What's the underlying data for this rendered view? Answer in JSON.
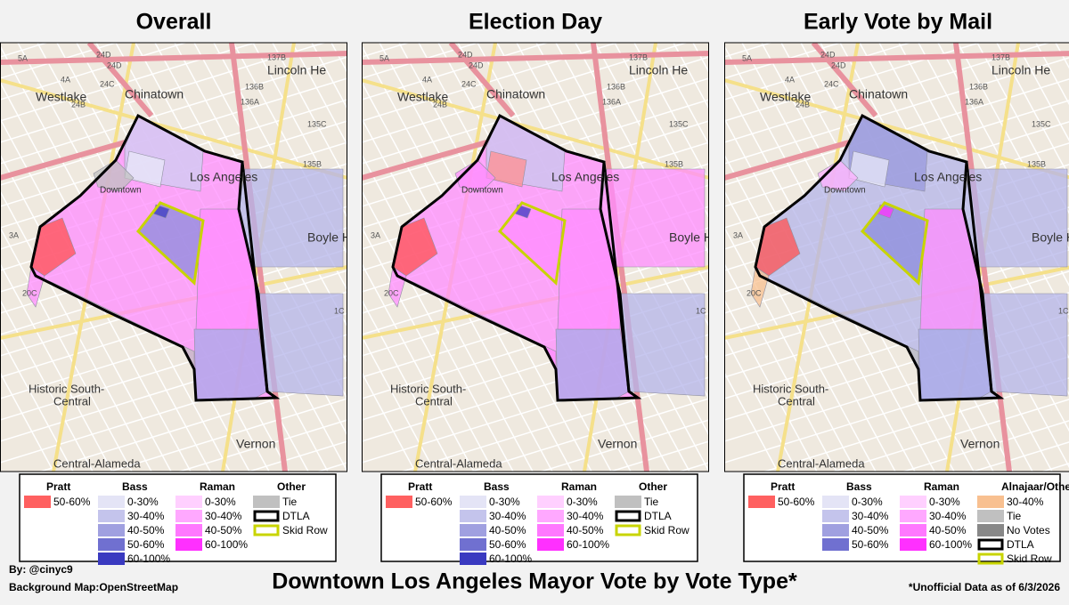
{
  "panels": [
    {
      "title": "Overall",
      "legend": [
        {
          "heading": "Pratt",
          "items": [
            {
              "label": "50-60%",
              "color": "#ff6060"
            }
          ]
        },
        {
          "heading": "Bass",
          "items": [
            {
              "label": "0-30%",
              "color": "#e4e4f6"
            },
            {
              "label": "30-40%",
              "color": "#c4c4ec"
            },
            {
              "label": "40-50%",
              "color": "#a0a0e0"
            },
            {
              "label": "50-60%",
              "color": "#7070d0"
            },
            {
              "label": "60-100%",
              "color": "#3a3ac0"
            }
          ]
        },
        {
          "heading": "Raman",
          "items": [
            {
              "label": "0-30%",
              "color": "#ffd0ff"
            },
            {
              "label": "30-40%",
              "color": "#ffa8ff"
            },
            {
              "label": "40-50%",
              "color": "#ff78ff"
            },
            {
              "label": "60-100%",
              "color": "#ff30ff"
            }
          ]
        },
        {
          "heading": "Other",
          "items": [
            {
              "label": "Tie",
              "color": "#c0c0c0"
            },
            {
              "label": "DTLA",
              "outline": "#000000"
            },
            {
              "label": "Skid Row",
              "outline": "#c8d400"
            }
          ]
        }
      ]
    },
    {
      "title": "Election Day",
      "legend": [
        {
          "heading": "Pratt",
          "items": [
            {
              "label": "50-60%",
              "color": "#ff6060"
            }
          ]
        },
        {
          "heading": "Bass",
          "items": [
            {
              "label": "0-30%",
              "color": "#e4e4f6"
            },
            {
              "label": "30-40%",
              "color": "#c4c4ec"
            },
            {
              "label": "40-50%",
              "color": "#a0a0e0"
            },
            {
              "label": "50-60%",
              "color": "#7070d0"
            },
            {
              "label": "60-100%",
              "color": "#3a3ac0"
            }
          ]
        },
        {
          "heading": "Raman",
          "items": [
            {
              "label": "0-30%",
              "color": "#ffd0ff"
            },
            {
              "label": "30-40%",
              "color": "#ffa8ff"
            },
            {
              "label": "40-50%",
              "color": "#ff78ff"
            },
            {
              "label": "60-100%",
              "color": "#ff30ff"
            }
          ]
        },
        {
          "heading": "Other",
          "items": [
            {
              "label": "Tie",
              "color": "#c0c0c0"
            },
            {
              "label": "DTLA",
              "outline": "#000000"
            },
            {
              "label": "Skid Row",
              "outline": "#c8d400"
            }
          ]
        }
      ]
    },
    {
      "title": "Early Vote by Mail",
      "legend": [
        {
          "heading": "Pratt",
          "items": [
            {
              "label": "50-60%",
              "color": "#ff6060"
            }
          ]
        },
        {
          "heading": "Bass",
          "items": [
            {
              "label": "0-30%",
              "color": "#e4e4f6"
            },
            {
              "label": "30-40%",
              "color": "#c4c4ec"
            },
            {
              "label": "40-50%",
              "color": "#a0a0e0"
            },
            {
              "label": "50-60%",
              "color": "#7070d0"
            }
          ]
        },
        {
          "heading": "Raman",
          "items": [
            {
              "label": "0-30%",
              "color": "#ffd0ff"
            },
            {
              "label": "30-40%",
              "color": "#ffa8ff"
            },
            {
              "label": "40-50%",
              "color": "#ff78ff"
            },
            {
              "label": "60-100%",
              "color": "#ff30ff"
            }
          ]
        },
        {
          "heading": "Alnajaar/Other",
          "items": [
            {
              "label": "30-40%",
              "color": "#f8c090"
            },
            {
              "label": "Tie",
              "color": "#c0c0c0"
            },
            {
              "label": "No Votes",
              "color": "#888888"
            },
            {
              "label": "DTLA",
              "outline": "#000000"
            },
            {
              "label": "Skid Row",
              "outline": "#c8d400"
            }
          ]
        }
      ]
    }
  ],
  "map_labels": [
    "Westlake",
    "Chinatown",
    "Lincoln He",
    "Los Angeles",
    "Downtown",
    "Boyle He",
    "Historic South-",
    "Central",
    "Vernon",
    "Central-Alameda",
    "5A",
    "4A",
    "24D",
    "24C",
    "24B",
    "137B",
    "136B",
    "136A",
    "135C",
    "135B",
    "1C",
    "20C",
    "3A",
    "24D"
  ],
  "credit_author": "By: @cinyc9",
  "credit_map": "Background Map:OpenStreetMap",
  "title": "Downtown Los Angeles Mayor Vote by Vote Type*",
  "note": "*Unofficial Data as of 6/3/2026"
}
